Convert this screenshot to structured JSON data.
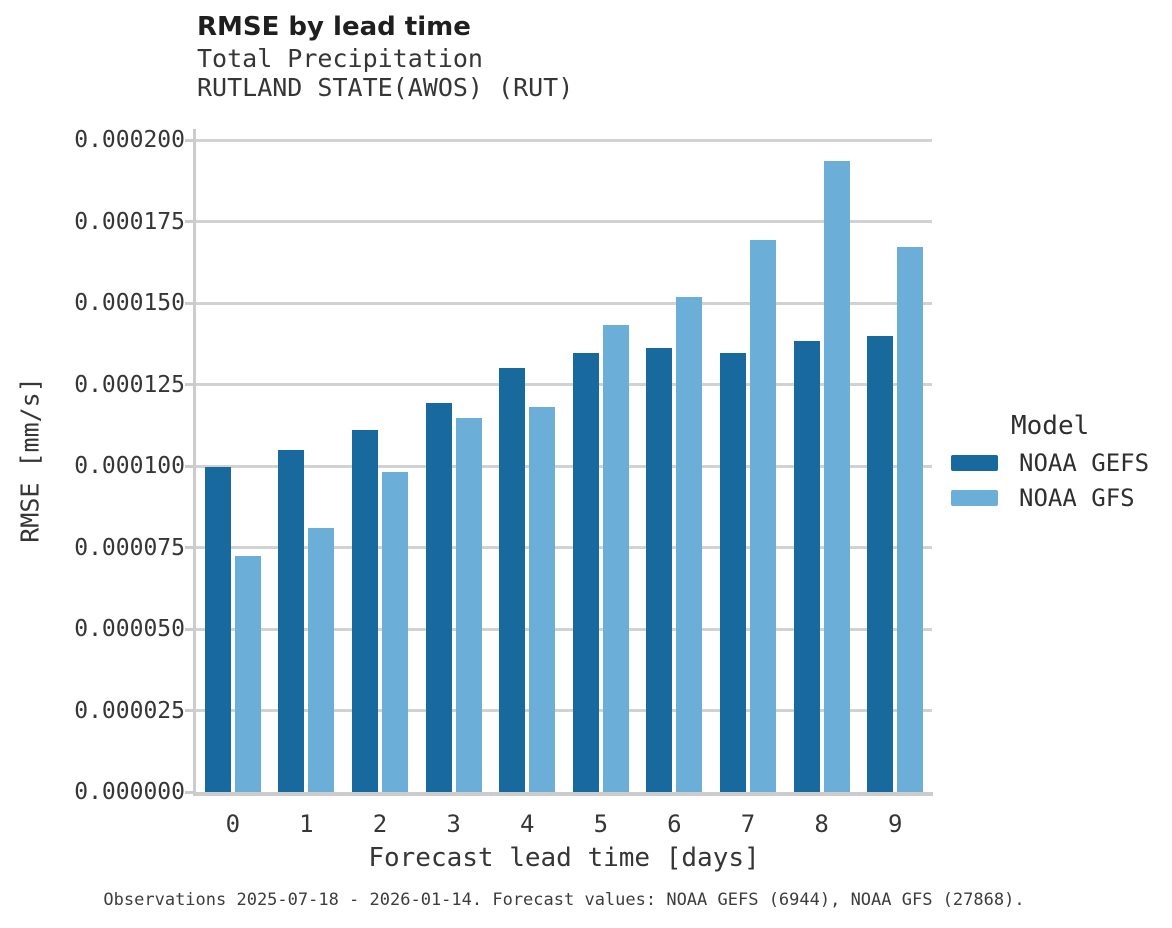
{
  "figure": {
    "title": "RMSE by lead time",
    "subtitle_line1": "Total Precipitation",
    "subtitle_line2": "RUTLAND STATE(AWOS) (RUT)",
    "caption": "Observations 2025-07-18 - 2026-01-14. Forecast values: NOAA GEFS (6944), NOAA GFS (27868)."
  },
  "legend": {
    "title": "Model",
    "items": [
      {
        "label": "NOAA GEFS",
        "color": "#17699e"
      },
      {
        "label": "NOAA GFS",
        "color": "#6bafd9"
      }
    ]
  },
  "chart_data": {
    "type": "bar",
    "title": "RMSE by lead time",
    "subtitle": [
      "Total Precipitation",
      "RUTLAND STATE(AWOS) (RUT)"
    ],
    "xlabel": "Forecast lead time [days]",
    "ylabel": "RMSE [mm/s]",
    "categories": [
      "0",
      "1",
      "2",
      "3",
      "4",
      "5",
      "6",
      "7",
      "8",
      "9"
    ],
    "series": [
      {
        "name": "NOAA GEFS",
        "color": "#17699e",
        "values": [
          9.96e-05,
          0.0001049,
          0.0001109,
          0.0001193,
          0.0001301,
          0.0001348,
          0.0001362,
          0.0001347,
          0.0001384,
          0.0001399
        ]
      },
      {
        "name": "NOAA GFS",
        "color": "#6bafd9",
        "values": [
          7.24e-05,
          8.09e-05,
          9.82e-05,
          0.0001147,
          0.0001181,
          0.0001433,
          0.0001519,
          0.0001693,
          0.0001935,
          0.0001672
        ]
      }
    ],
    "ylim": [
      0,
      0.0002
    ],
    "ytick_step": 2.5e-05,
    "ytick_labels": [
      "0.000000",
      "0.000025",
      "0.000050",
      "0.000075",
      "0.000100",
      "0.000125",
      "0.000150",
      "0.000175",
      "0.000200"
    ],
    "grid": "horizontal",
    "legend_title": "Model",
    "legend_position": "center-right"
  },
  "colors": {
    "background": "#ffffff",
    "grid": "#d2d2d2",
    "spine": "#cccccc",
    "title_text": "#1f1f1f",
    "text": "#363636"
  }
}
